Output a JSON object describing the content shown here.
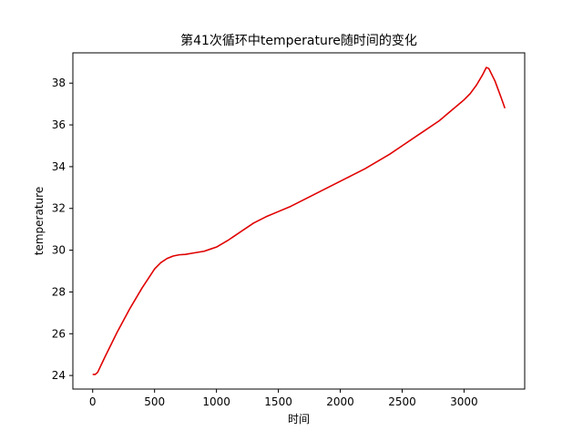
{
  "chart_data": {
    "type": "line",
    "title": "第41次循环中temperature随时间的变化",
    "xlabel": "时间",
    "ylabel": "temperature",
    "xlim": [
      -160,
      3490
    ],
    "ylim": [
      23.35,
      39.45
    ],
    "x_ticks": [
      0,
      500,
      1000,
      1500,
      2000,
      2500,
      3000
    ],
    "y_ticks": [
      24,
      26,
      28,
      30,
      32,
      34,
      36,
      38
    ],
    "grid": false,
    "legend": "none",
    "series": [
      {
        "color": "#e00000",
        "x": [
          0,
          20,
          40,
          60,
          100,
          150,
          200,
          250,
          300,
          350,
          400,
          450,
          500,
          550,
          600,
          650,
          700,
          750,
          800,
          850,
          900,
          950,
          1000,
          1100,
          1200,
          1300,
          1400,
          1500,
          1600,
          1700,
          1800,
          1900,
          2000,
          2100,
          2200,
          2300,
          2400,
          2500,
          2600,
          2700,
          2800,
          2900,
          3000,
          3050,
          3100,
          3150,
          3180,
          3200,
          3250,
          3300,
          3330
        ],
        "y": [
          24.05,
          24.05,
          24.15,
          24.4,
          24.9,
          25.5,
          26.1,
          26.65,
          27.2,
          27.7,
          28.2,
          28.65,
          29.1,
          29.4,
          29.6,
          29.72,
          29.78,
          29.8,
          29.85,
          29.9,
          29.95,
          30.05,
          30.15,
          30.5,
          30.9,
          31.3,
          31.6,
          31.85,
          32.1,
          32.4,
          32.7,
          33.0,
          33.3,
          33.6,
          33.9,
          34.25,
          34.6,
          35.0,
          35.4,
          35.8,
          36.2,
          36.7,
          37.2,
          37.5,
          37.9,
          38.4,
          38.75,
          38.7,
          38.1,
          37.3,
          36.8
        ]
      }
    ]
  }
}
